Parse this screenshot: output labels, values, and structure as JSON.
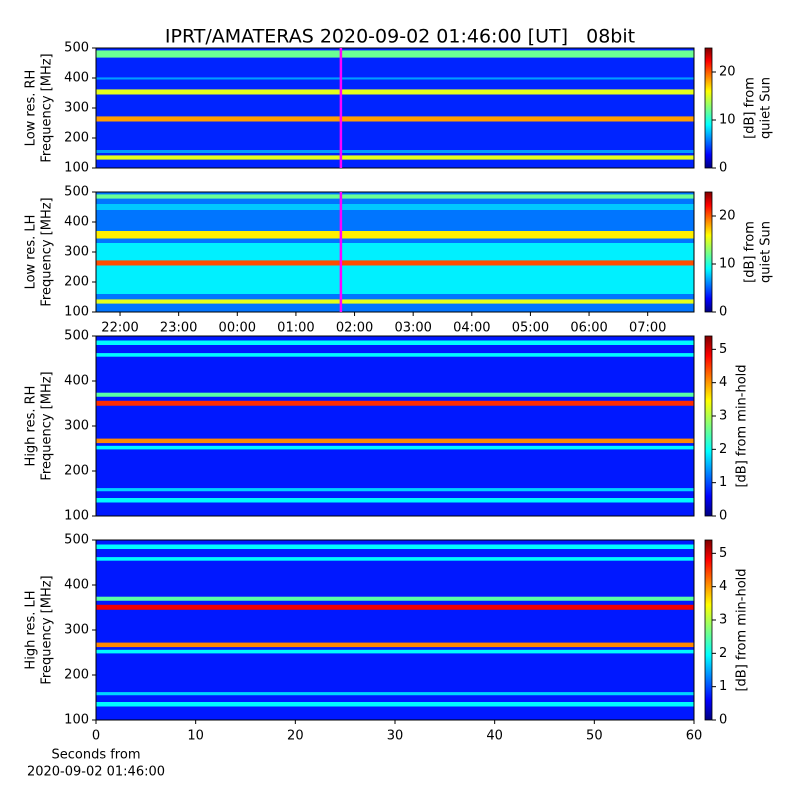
{
  "title": "IPRT/AMATERAS 2020-09-02 01:46:00 [UT]   08bit",
  "chart_data": [
    {
      "type": "heatmap",
      "ylabel": [
        "Low res. RH",
        "Frequency [MHz]"
      ],
      "ylim": [
        100,
        500
      ],
      "yticks": [
        100,
        200,
        300,
        400,
        500
      ],
      "xlim": [
        21.59,
        31.79
      ],
      "marker_x": 25.767,
      "marker_color": "#ff00ff",
      "background": 4,
      "bands": [
        {
          "ylim": [
            128,
            142
          ],
          "value": 15
        },
        {
          "ylim": [
            150,
            160
          ],
          "value": 7
        },
        {
          "ylim": [
            255,
            272
          ],
          "value": 18
        },
        {
          "ylim": [
            345,
            362
          ],
          "value": 15
        },
        {
          "ylim": [
            395,
            402
          ],
          "value": 7
        },
        {
          "ylim": [
            468,
            492
          ],
          "value": 12
        }
      ],
      "colorbar": {
        "label": [
          "[dB] from",
          "quiet Sun"
        ],
        "lim": [
          0,
          25
        ],
        "ticks": [
          0,
          10,
          20
        ]
      }
    },
    {
      "type": "heatmap",
      "ylabel": [
        "Low res. LH",
        "Frequency [MHz]"
      ],
      "ylim": [
        100,
        500
      ],
      "yticks": [
        100,
        200,
        300,
        400,
        500
      ],
      "xlim": [
        21.59,
        31.79
      ],
      "marker_x": 25.767,
      "marker_color": "#ff00ff",
      "xticks": [
        {
          "value": 22,
          "label": "22:00"
        },
        {
          "value": 23,
          "label": "23:00"
        },
        {
          "value": 24,
          "label": "00:00"
        },
        {
          "value": 25,
          "label": "01:00"
        },
        {
          "value": 26,
          "label": "02:00"
        },
        {
          "value": 27,
          "label": "03:00"
        },
        {
          "value": 28,
          "label": "04:00"
        },
        {
          "value": 29,
          "label": "05:00"
        },
        {
          "value": 30,
          "label": "06:00"
        },
        {
          "value": 31,
          "label": "07:00"
        }
      ],
      "background": 6,
      "bands": [
        {
          "ylim": [
            128,
            142
          ],
          "value": 15
        },
        {
          "ylim": [
            160,
            330
          ],
          "value": 9
        },
        {
          "ylim": [
            255,
            272
          ],
          "value": 20
        },
        {
          "ylim": [
            345,
            370
          ],
          "value": 16
        },
        {
          "ylim": [
            440,
            460
          ],
          "value": 8
        },
        {
          "ylim": [
            478,
            492
          ],
          "value": 12
        }
      ],
      "colorbar": {
        "label": [
          "[dB] from",
          "quiet Sun"
        ],
        "lim": [
          0,
          25
        ],
        "ticks": [
          0,
          10,
          20
        ]
      }
    },
    {
      "type": "heatmap",
      "ylabel": [
        "High res. RH",
        "Frequency [MHz]"
      ],
      "ylim": [
        100,
        500
      ],
      "yticks": [
        100,
        200,
        300,
        400,
        500
      ],
      "background": 0.8,
      "bands": [
        {
          "ylim": [
            130,
            140
          ],
          "value": 2
        },
        {
          "ylim": [
            155,
            162
          ],
          "value": 1.8
        },
        {
          "ylim": [
            248,
            256
          ],
          "value": 2
        },
        {
          "ylim": [
            262,
            272
          ],
          "value": 4
        },
        {
          "ylim": [
            345,
            356
          ],
          "value": 4.5
        },
        {
          "ylim": [
            365,
            374
          ],
          "value": 2.5
        },
        {
          "ylim": [
            454,
            462
          ],
          "value": 2
        },
        {
          "ylim": [
            480,
            490
          ],
          "value": 2
        }
      ],
      "colorbar": {
        "label": [
          "[dB] from min-hold"
        ],
        "lim": [
          0,
          5.4
        ],
        "ticks": [
          0,
          1,
          2,
          3,
          4,
          5
        ]
      }
    },
    {
      "type": "heatmap",
      "ylabel": [
        "High res. LH",
        "Frequency [MHz]"
      ],
      "ylim": [
        100,
        500
      ],
      "yticks": [
        100,
        200,
        300,
        400,
        500
      ],
      "xlim": [
        0,
        60
      ],
      "xticks": [
        0,
        10,
        20,
        30,
        40,
        50,
        60
      ],
      "xlabel": [
        "Seconds from",
        "2020-09-02 01:46:00"
      ],
      "background": 0.8,
      "bands": [
        {
          "ylim": [
            130,
            140
          ],
          "value": 2
        },
        {
          "ylim": [
            155,
            162
          ],
          "value": 1.8
        },
        {
          "ylim": [
            248,
            256
          ],
          "value": 2
        },
        {
          "ylim": [
            262,
            272
          ],
          "value": 4
        },
        {
          "ylim": [
            345,
            356
          ],
          "value": 4.8
        },
        {
          "ylim": [
            365,
            374
          ],
          "value": 2.5
        },
        {
          "ylim": [
            454,
            462
          ],
          "value": 2
        },
        {
          "ylim": [
            480,
            490
          ],
          "value": 2
        }
      ],
      "colorbar": {
        "label": [
          "[dB] from min-hold"
        ],
        "lim": [
          0,
          5.4
        ],
        "ticks": [
          0,
          1,
          2,
          3,
          4,
          5
        ]
      }
    }
  ]
}
